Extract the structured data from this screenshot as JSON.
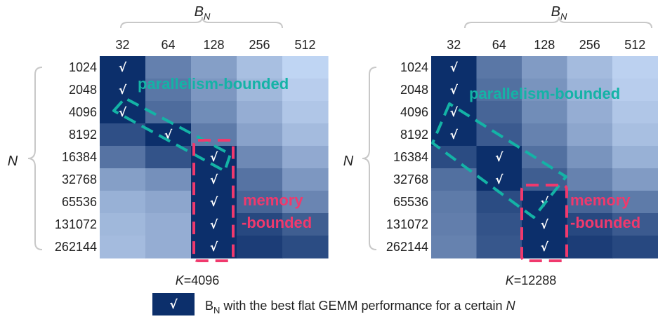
{
  "chart_data": [
    {
      "type": "heatmap",
      "title_var": "K",
      "title_value": "=4096",
      "xlabel_var": "B",
      "xlabel_sub": "N",
      "ylabel": "N",
      "x_categories": [
        "32",
        "64",
        "128",
        "256",
        "512"
      ],
      "y_categories": [
        "1024",
        "2048",
        "4096",
        "8192",
        "16384",
        "32768",
        "65536",
        "131072",
        "262144"
      ],
      "best_bn": [
        "32",
        "32",
        "32",
        "64",
        "128",
        "128",
        "128",
        "128",
        "128"
      ],
      "shading": [
        [
          1.0,
          0.55,
          0.38,
          0.2,
          0.08
        ],
        [
          1.0,
          0.6,
          0.42,
          0.24,
          0.12
        ],
        [
          1.0,
          0.66,
          0.48,
          0.3,
          0.16
        ],
        [
          0.82,
          1.0,
          0.58,
          0.36,
          0.22
        ],
        [
          0.62,
          0.8,
          1.0,
          0.5,
          0.32
        ],
        [
          0.38,
          0.46,
          1.0,
          0.62,
          0.42
        ],
        [
          0.28,
          0.34,
          1.0,
          0.7,
          0.52
        ],
        [
          0.24,
          0.3,
          1.0,
          0.86,
          0.74
        ],
        [
          0.22,
          0.3,
          1.0,
          0.92,
          0.84
        ]
      ],
      "annotations": {
        "parallelism": "parallelism-bounded",
        "memory_line1": "memory",
        "memory_line2": "-bounded"
      }
    },
    {
      "type": "heatmap",
      "title_var": "K",
      "title_value": "=12288",
      "xlabel_var": "B",
      "xlabel_sub": "N",
      "ylabel": "N",
      "x_categories": [
        "32",
        "64",
        "128",
        "256",
        "512"
      ],
      "y_categories": [
        "1024",
        "2048",
        "4096",
        "8192",
        "16384",
        "32768",
        "65536",
        "131072",
        "262144"
      ],
      "best_bn": [
        "32",
        "32",
        "32",
        "32",
        "64",
        "64",
        "128",
        "128",
        "128"
      ],
      "shading": [
        [
          1.0,
          0.6,
          0.4,
          0.22,
          0.1
        ],
        [
          1.0,
          0.64,
          0.44,
          0.26,
          0.12
        ],
        [
          1.0,
          0.7,
          0.48,
          0.3,
          0.16
        ],
        [
          1.0,
          0.76,
          0.54,
          0.34,
          0.2
        ],
        [
          0.84,
          1.0,
          0.64,
          0.44,
          0.28
        ],
        [
          0.64,
          1.0,
          0.74,
          0.54,
          0.4
        ],
        [
          0.58,
          0.84,
          1.0,
          0.7,
          0.58
        ],
        [
          0.56,
          0.8,
          1.0,
          0.86,
          0.76
        ],
        [
          0.54,
          0.78,
          1.0,
          0.92,
          0.86
        ]
      ],
      "annotations": {
        "parallelism": "parallelism-bounded",
        "memory_line1": "memory",
        "memory_line2": "-bounded"
      }
    }
  ],
  "legend": {
    "mark": "√",
    "text_main": "B",
    "text_sub": "N",
    "text_rest": " with the best flat GEMM performance for a certain ",
    "text_var": "N"
  },
  "colors": {
    "dark": "#0c2f6b",
    "light": "#cfe3ff",
    "teal": "#14b3a6",
    "pink": "#f0396d"
  }
}
